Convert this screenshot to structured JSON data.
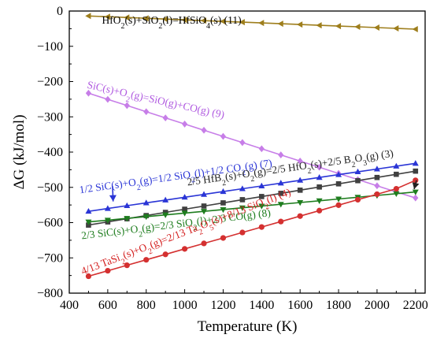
{
  "chart_data": {
    "type": "line",
    "xlabel": "Temperature (K)",
    "ylabel": "ΔG (kJ/mol)",
    "xlim": [
      400,
      2250
    ],
    "ylim": [
      -800,
      0
    ],
    "xticks": [
      400,
      600,
      800,
      1000,
      1200,
      1400,
      1600,
      1800,
      2000,
      2200
    ],
    "yticks": [
      0,
      -100,
      -200,
      -300,
      -400,
      -500,
      -600,
      -700,
      -800
    ],
    "grid": false,
    "series": [
      {
        "key": "r11",
        "color": "#9e7e1c",
        "marker": "triangle-left",
        "x": [
          500,
          600,
          700,
          800,
          900,
          1000,
          1100,
          1200,
          1300,
          1400,
          1500,
          1600,
          1700,
          1800,
          1900,
          2000,
          2100,
          2200
        ],
        "values": [
          -14,
          -16.2,
          -18.4,
          -20.6,
          -22.8,
          -25,
          -27.2,
          -29.4,
          -31.6,
          -33.8,
          -36,
          -38.2,
          -40.4,
          -42.6,
          -44.8,
          -47,
          -49.2,
          -51.4
        ]
      },
      {
        "key": "r9",
        "color": "#c77ee8",
        "marker": "diamond",
        "x": [
          500,
          600,
          700,
          800,
          900,
          1000,
          1100,
          1200,
          1300,
          1400,
          1500,
          1600,
          1700,
          1800,
          1900,
          2000,
          2100,
          2200
        ],
        "values": [
          -233,
          -250.5,
          -268,
          -285.5,
          -303,
          -320.5,
          -338,
          -355.5,
          -373,
          -390.5,
          -408,
          -425.5,
          -443,
          -460.5,
          -478,
          -495.5,
          -513,
          -530
        ]
      },
      {
        "key": "r7",
        "color": "#2a35d6",
        "marker": "triangle-up",
        "x": [
          500,
          600,
          700,
          800,
          900,
          1000,
          1100,
          1200,
          1300,
          1400,
          1500,
          1600,
          1700,
          1800,
          1900,
          2000,
          2100,
          2200
        ],
        "values": [
          -568,
          -560,
          -552,
          -544,
          -536,
          -528,
          -520,
          -512,
          -504,
          -496,
          -488,
          -480,
          -472,
          -464,
          -456,
          -448,
          -440,
          -432
        ]
      },
      {
        "key": "r3",
        "color": "#404040",
        "marker": "square",
        "x": [
          500,
          600,
          700,
          800,
          900,
          1000,
          1100,
          1200,
          1300,
          1400,
          1500,
          1600,
          1700,
          1800,
          1900,
          2000,
          2100,
          2200
        ],
        "values": [
          -607,
          -598,
          -589,
          -580,
          -571,
          -562,
          -553,
          -544,
          -535,
          -526,
          -517,
          -508,
          -499,
          -490,
          -481,
          -472,
          -463,
          -454
        ]
      },
      {
        "key": "r8",
        "color": "#1e7d1e",
        "marker": "triangle-down",
        "x": [
          500,
          600,
          700,
          800,
          900,
          1000,
          1100,
          1200,
          1300,
          1400,
          1500,
          1600,
          1700,
          1800,
          1900,
          2000,
          2100,
          2200
        ],
        "values": [
          -598,
          -593,
          -588,
          -583,
          -578,
          -573,
          -568,
          -563,
          -558,
          -553,
          -548,
          -543,
          -538,
          -533,
          -528,
          -523,
          -518,
          -513
        ]
      },
      {
        "key": "r4",
        "color": "#d43030",
        "marker": "circle",
        "x": [
          500,
          600,
          700,
          800,
          900,
          1000,
          1100,
          1200,
          1300,
          1400,
          1500,
          1600,
          1700,
          1800,
          1900,
          2000,
          2100,
          2200
        ],
        "values": [
          -752,
          -736.5,
          -721,
          -705.5,
          -690,
          -674.5,
          -659,
          -643.5,
          -628,
          -612.5,
          -597,
          -581.5,
          -566,
          -550.5,
          -535,
          -519.5,
          -504,
          -480
        ]
      }
    ],
    "annotations": [
      {
        "key": "a11",
        "color": "#000000",
        "segments": [
          {
            "t": "HfO"
          },
          {
            "t": "2",
            "s": "sub"
          },
          {
            "t": "(s)+SiO"
          },
          {
            "t": "2",
            "s": "sub"
          },
          {
            "t": "(l)=HfSiO"
          },
          {
            "t": "4",
            "s": "sub"
          },
          {
            "t": "(s)      (11)"
          }
        ]
      },
      {
        "key": "a9",
        "color": "#b05ae0",
        "segments": [
          {
            "t": "SiC(s)+O"
          },
          {
            "t": "2",
            "s": "sub"
          },
          {
            "t": "(g)=SiO(g)+CO(g)  (9)"
          }
        ]
      },
      {
        "key": "a7",
        "color": "#2a35d6",
        "segments": [
          {
            "t": "1/2 SiC(s)+O"
          },
          {
            "t": "2",
            "s": "sub"
          },
          {
            "t": "(g)=1/2 SiO"
          },
          {
            "t": "2",
            "s": "sub"
          },
          {
            "t": "(l)+1/2 CO"
          },
          {
            "t": "2",
            "s": "sub"
          },
          {
            "t": "(g)  (7)"
          }
        ]
      },
      {
        "key": "a3",
        "color": "#222222",
        "segments": [
          {
            "t": "2/5 HfB"
          },
          {
            "t": "2",
            "s": "sub"
          },
          {
            "t": "(s)+O"
          },
          {
            "t": "2",
            "s": "sub"
          },
          {
            "t": "(g)=2/5 HfO"
          },
          {
            "t": "2",
            "s": "sub"
          },
          {
            "t": "(s)+2/5 B"
          },
          {
            "t": "2",
            "s": "sub"
          },
          {
            "t": "O"
          },
          {
            "t": "3",
            "s": "sub"
          },
          {
            "t": "(g)  (3)"
          }
        ]
      },
      {
        "key": "a8",
        "color": "#1e7d1e",
        "segments": [
          {
            "t": "2/3 SiC(s)+O"
          },
          {
            "t": "2",
            "s": "sub"
          },
          {
            "t": "(g)=2/3 SiO"
          },
          {
            "t": "2",
            "s": "sub"
          },
          {
            "t": "(l)+2/3 CO(g)  (8)"
          }
        ]
      },
      {
        "key": "a4",
        "color": "#d42020",
        "segments": [
          {
            "t": "4/13 TaSi"
          },
          {
            "t": "2",
            "s": "sub"
          },
          {
            "t": "(s)+O"
          },
          {
            "t": "2",
            "s": "sub"
          },
          {
            "t": "(g)=2/13 Ta"
          },
          {
            "t": "2",
            "s": "sub"
          },
          {
            "t": "O"
          },
          {
            "t": "5",
            "s": "sub"
          },
          {
            "t": "(s)+8/13 SiO"
          },
          {
            "t": "2",
            "s": "sub"
          },
          {
            "t": "(l)  (4)"
          }
        ]
      }
    ]
  }
}
